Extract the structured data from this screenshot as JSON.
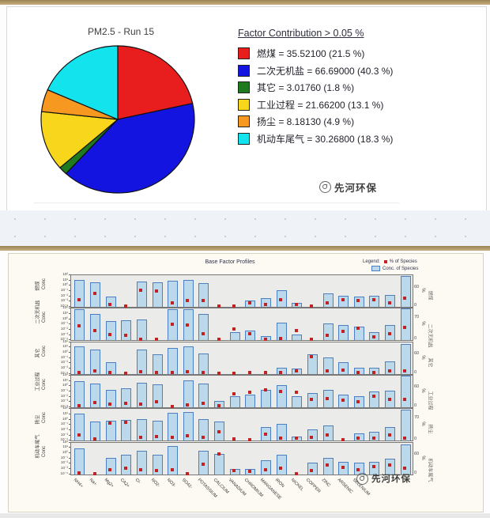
{
  "top_panel": {
    "title": "PM2.5 - Run 15",
    "legend_title": "Factor Contribution > 0.05 %",
    "watermark": "先河环保"
  },
  "bottom_panel": {
    "title": "Base Factor Profiles",
    "legend_label": "Legend:",
    "legend_item_pct": "% of Species",
    "legend_item_conc": "Conc. of Species",
    "conc_axis_label": "Conc",
    "pct_axis_label": "%",
    "watermark": "先河环保"
  },
  "chart_data": [
    {
      "type": "pie",
      "title": "PM2.5 - Run 15",
      "legend_title": "Factor Contribution > 0.05 %",
      "start_angle": "top, clockwise",
      "slices": [
        {
          "label": "燃煤",
          "value": "35.52100",
          "pct": "21.5",
          "color": "#e81e1e"
        },
        {
          "label": "二次无机盐",
          "value": "66.69000",
          "pct": "40.3",
          "color": "#1414e0"
        },
        {
          "label": "其它",
          "value": "3.01760",
          "pct": "1.8",
          "color": "#1f7a1f"
        },
        {
          "label": "工业过程",
          "value": "21.66200",
          "pct": "13.1",
          "color": "#f8d61b"
        },
        {
          "label": "扬尘",
          "value": "8.18130",
          "pct": "4.9",
          "color": "#f79820"
        },
        {
          "label": "机动车尾气",
          "value": "30.26800",
          "pct": "18.3",
          "color": "#12e3ec"
        }
      ]
    },
    {
      "type": "bar",
      "title": "Base Factor Profiles",
      "legend": [
        "% of Species",
        "Conc. of Species"
      ],
      "y_left_scale": "log10, 1e-4 to 1e2",
      "y_left_ticks": [
        "10²",
        "10¹",
        "10⁰",
        "10⁻¹",
        "10⁻²",
        "10⁻³",
        "10⁻⁴"
      ],
      "y_right_max": 100,
      "categories": [
        "NH4+",
        "Na+",
        "Mg2+",
        "CA2+",
        "Cl-",
        "NO2-",
        "NO3-",
        "SO42-",
        "POTASSIUM",
        "CALCIUM",
        "VANADIUM",
        "CHROMIUM",
        "MANGANESE",
        "IRON",
        "NICKEL",
        "COPPER",
        "ZINC",
        "ARSENIC",
        "SELENIUM",
        "",
        "",
        ""
      ],
      "rows": [
        {
          "factor": "燃煤",
          "pmax_label": "60",
          "conc": [
            8,
            3,
            0.006,
            0,
            5,
            3,
            6,
            10,
            2,
            0,
            0,
            0.001,
            0.003,
            0.1,
            0.0004,
            0,
            0.03,
            0.01,
            0.006,
            0.01,
            0.015,
            60
          ],
          "pct": [
            22,
            42,
            8,
            2,
            52,
            50,
            12,
            20,
            20,
            2,
            3,
            12,
            8,
            22,
            8,
            3,
            12,
            22,
            20,
            22,
            12,
            28
          ]
        },
        {
          "factor": "二次无机盐",
          "pmax_label": "70",
          "conc": [
            50,
            6,
            0.3,
            0.5,
            0.6,
            0,
            60,
            60,
            6,
            0,
            0.003,
            0.005,
            0.0005,
            0.15,
            0.001,
            0,
            0.1,
            0.06,
            0.03,
            0.003,
            0.05,
            80
          ],
          "pct": [
            45,
            30,
            18,
            15,
            3,
            2,
            50,
            48,
            20,
            2,
            35,
            22,
            4,
            6,
            32,
            2,
            15,
            28,
            38,
            10,
            20,
            40
          ]
        },
        {
          "factor": "其它",
          "pmax_label": "60",
          "conc": [
            10,
            3,
            0.01,
            0,
            3,
            0.3,
            6,
            10,
            0.5,
            0,
            0,
            0,
            0,
            0.001,
            0.0008,
            0.3,
            0.1,
            0.01,
            0.001,
            0.001,
            0.015,
            30
          ],
          "pct": [
            4,
            8,
            3,
            2,
            6,
            5,
            5,
            6,
            5,
            2,
            2,
            3,
            3,
            4,
            8,
            55,
            10,
            12,
            5,
            4,
            10,
            8
          ]
        },
        {
          "factor": "工业过程",
          "pmax_label": "60",
          "conc": [
            6,
            2,
            0.15,
            0.3,
            3,
            1.5,
            0,
            8,
            2,
            0.001,
            0.01,
            0.015,
            0.15,
            1,
            0.01,
            0.03,
            0.15,
            0.015,
            0.01,
            0.06,
            0.1,
            60
          ],
          "pct": [
            5,
            15,
            10,
            12,
            10,
            18,
            3,
            8,
            12,
            5,
            42,
            48,
            55,
            50,
            48,
            25,
            28,
            22,
            18,
            35,
            25,
            25
          ]
        },
        {
          "factor": "扬尘",
          "pmax_label": "70",
          "conc": [
            10,
            0.3,
            0.5,
            0.6,
            1,
            0.5,
            15,
            20,
            1,
            0.3,
            0,
            0,
            0.03,
            0.1,
            0.0005,
            0.01,
            0.06,
            0,
            0.0015,
            0.003,
            0.03,
            60
          ],
          "pct": [
            18,
            5,
            55,
            58,
            10,
            12,
            10,
            15,
            10,
            28,
            5,
            2,
            20,
            8,
            8,
            10,
            18,
            3,
            8,
            8,
            18,
            8
          ]
        },
        {
          "factor": "机动车尾气",
          "pmax_label": "60",
          "conc": [
            6,
            0,
            0.1,
            0.3,
            2,
            0.3,
            15,
            0,
            2,
            0.5,
            0.0008,
            0.0008,
            0.03,
            0.3,
            0,
            0.01,
            0.1,
            0.015,
            0.01,
            0.015,
            0.06,
            30
          ],
          "pct": [
            3,
            2,
            15,
            20,
            15,
            12,
            15,
            2,
            32,
            65,
            12,
            10,
            15,
            18,
            2,
            12,
            28,
            22,
            15,
            25,
            30,
            20
          ]
        }
      ]
    }
  ]
}
